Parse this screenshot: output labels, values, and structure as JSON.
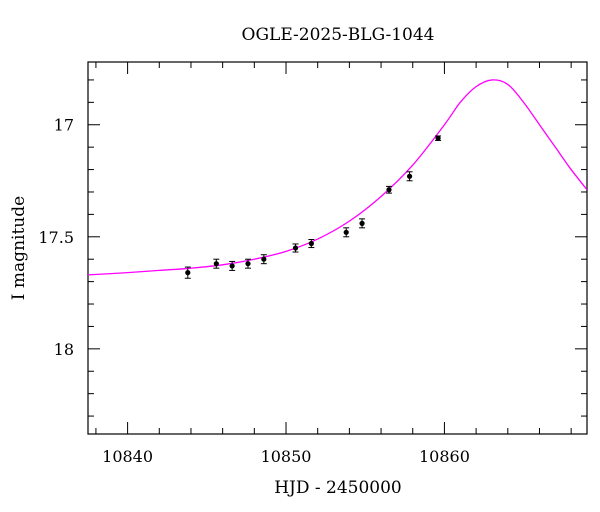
{
  "chart_data": {
    "type": "scatter",
    "title": "OGLE-2025-BLG-1044",
    "xlabel": "HJD - 2450000",
    "ylabel": "I magnitude",
    "xlim": [
      10837.5,
      10869
    ],
    "ylim": [
      18.38,
      16.72
    ],
    "y_inverted": true,
    "grid": false,
    "x_ticks": [
      10840,
      10850,
      10860
    ],
    "x_tick_labels": [
      "10840",
      "10850",
      "10860"
    ],
    "y_ticks": [
      17,
      17.5,
      18
    ],
    "y_tick_labels": [
      "17",
      "17.5",
      "18"
    ],
    "series": [
      {
        "kind": "points",
        "color": "#000000",
        "x": [
          10843.8,
          10845.6,
          10846.6,
          10847.6,
          10848.6,
          10850.6,
          10851.6,
          10853.8,
          10854.8,
          10856.5,
          10857.8,
          10859.6
        ],
        "y": [
          17.66,
          17.62,
          17.63,
          17.62,
          17.6,
          17.55,
          17.53,
          17.48,
          17.44,
          17.29,
          17.23,
          17.06
        ],
        "yerr": [
          0.025,
          0.02,
          0.02,
          0.02,
          0.02,
          0.018,
          0.018,
          0.02,
          0.02,
          0.015,
          0.02,
          0.01
        ]
      },
      {
        "kind": "model",
        "color": "#ff00ff",
        "x": [
          10837.5,
          10840,
          10842,
          10844,
          10846,
          10848,
          10850,
          10852,
          10854,
          10856,
          10858,
          10860,
          10861,
          10862,
          10863,
          10864,
          10865,
          10866,
          10867,
          10868,
          10869
        ],
        "y": [
          17.67,
          17.66,
          17.65,
          17.64,
          17.625,
          17.6,
          17.565,
          17.51,
          17.43,
          17.32,
          17.18,
          17.0,
          16.9,
          16.83,
          16.8,
          16.82,
          16.9,
          17.0,
          17.1,
          17.2,
          17.29
        ]
      }
    ]
  }
}
